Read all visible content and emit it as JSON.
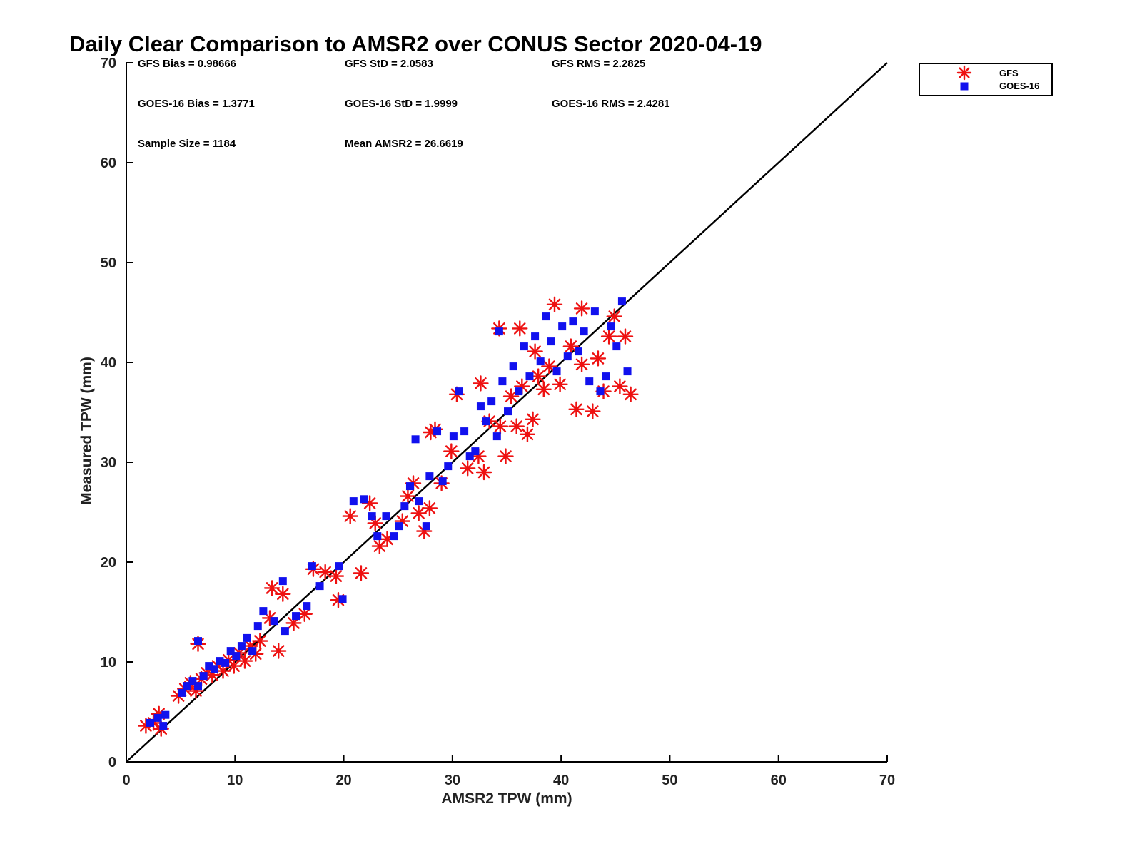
{
  "chart_data": {
    "type": "scatter",
    "title": "Daily Clear Comparison to AMSR2 over CONUS Sector 2020-04-19",
    "xlabel": "AMSR2 TPW (mm)",
    "ylabel": "Measured TPW (mm)",
    "xlim": [
      0,
      70
    ],
    "ylim": [
      0,
      70
    ],
    "xticks": [
      "0",
      "10",
      "20",
      "30",
      "40",
      "50",
      "60",
      "70"
    ],
    "yticks": [
      "0",
      "10",
      "20",
      "30",
      "40",
      "50",
      "60",
      "70"
    ],
    "reference_line": {
      "from": [
        0,
        0
      ],
      "to": [
        70,
        70
      ],
      "color": "#000000"
    },
    "grid": false,
    "legend_position": "top-right-outside",
    "stats": [
      {
        "id": "gfs-bias",
        "text": "GFS Bias = 0.98666"
      },
      {
        "id": "gfs-std",
        "text": "GFS StD = 2.0583"
      },
      {
        "id": "gfs-rms",
        "text": "GFS RMS = 2.2825"
      },
      {
        "id": "goes-bias",
        "text": "GOES-16 Bias = 1.3771"
      },
      {
        "id": "goes-std",
        "text": "GOES-16 StD = 1.9999"
      },
      {
        "id": "goes-rms",
        "text": "GOES-16 RMS = 2.4281"
      },
      {
        "id": "sample-size",
        "text": "Sample Size = 1184"
      },
      {
        "id": "mean-amsr2",
        "text": "Mean AMSR2 = 26.6619"
      }
    ],
    "series": [
      {
        "name": "GFS",
        "marker": "asterisk",
        "color": "#ee1111",
        "points": [
          [
            1.8,
            3.6
          ],
          [
            2.5,
            3.9
          ],
          [
            3.2,
            3.3
          ],
          [
            3.0,
            4.8
          ],
          [
            4.8,
            6.6
          ],
          [
            5.4,
            7.3
          ],
          [
            5.9,
            7.9
          ],
          [
            6.4,
            7.1
          ],
          [
            6.9,
            8.3
          ],
          [
            7.4,
            8.9
          ],
          [
            7.9,
            8.7
          ],
          [
            8.4,
            9.6
          ],
          [
            8.9,
            9.1
          ],
          [
            9.4,
            10.2
          ],
          [
            9.9,
            9.6
          ],
          [
            10.4,
            10.9
          ],
          [
            10.9,
            10.1
          ],
          [
            11.4,
            11.6
          ],
          [
            11.9,
            10.8
          ],
          [
            12.3,
            12.1
          ],
          [
            6.6,
            11.8
          ],
          [
            13.4,
            17.4
          ],
          [
            14.4,
            16.8
          ],
          [
            15.4,
            13.9
          ],
          [
            16.4,
            14.8
          ],
          [
            14.0,
            11.1
          ],
          [
            13.2,
            14.4
          ],
          [
            17.2,
            19.3
          ],
          [
            18.3,
            19.0
          ],
          [
            19.3,
            18.6
          ],
          [
            19.5,
            16.2
          ],
          [
            20.6,
            24.6
          ],
          [
            21.6,
            18.9
          ],
          [
            22.4,
            25.9
          ],
          [
            22.9,
            23.9
          ],
          [
            23.3,
            21.6
          ],
          [
            24.0,
            22.3
          ],
          [
            25.4,
            24.1
          ],
          [
            25.9,
            26.6
          ],
          [
            26.4,
            27.9
          ],
          [
            26.9,
            24.9
          ],
          [
            27.4,
            23.1
          ],
          [
            27.9,
            25.4
          ],
          [
            28.4,
            33.3
          ],
          [
            28.0,
            33.0
          ],
          [
            29.0,
            27.9
          ],
          [
            29.9,
            31.1
          ],
          [
            30.4,
            36.8
          ],
          [
            31.4,
            29.4
          ],
          [
            32.4,
            30.6
          ],
          [
            32.9,
            29.0
          ],
          [
            33.4,
            34.1
          ],
          [
            34.4,
            33.6
          ],
          [
            34.9,
            30.6
          ],
          [
            35.4,
            36.6
          ],
          [
            35.9,
            33.6
          ],
          [
            36.4,
            37.6
          ],
          [
            36.9,
            32.8
          ],
          [
            37.4,
            34.3
          ],
          [
            37.9,
            38.6
          ],
          [
            38.4,
            37.3
          ],
          [
            38.9,
            39.6
          ],
          [
            39.4,
            45.8
          ],
          [
            39.9,
            37.8
          ],
          [
            40.9,
            41.6
          ],
          [
            41.4,
            35.3
          ],
          [
            41.9,
            39.8
          ],
          [
            42.9,
            35.1
          ],
          [
            43.4,
            40.4
          ],
          [
            43.9,
            37.1
          ],
          [
            44.4,
            42.6
          ],
          [
            44.9,
            44.6
          ],
          [
            45.4,
            37.6
          ],
          [
            45.9,
            42.6
          ],
          [
            46.4,
            36.8
          ],
          [
            34.3,
            43.4
          ],
          [
            36.2,
            43.4
          ],
          [
            41.9,
            45.4
          ],
          [
            32.6,
            37.9
          ],
          [
            37.6,
            41.1
          ]
        ]
      },
      {
        "name": "GOES-16",
        "marker": "square",
        "color": "#1111ee",
        "points": [
          [
            2.2,
            3.9
          ],
          [
            2.9,
            4.4
          ],
          [
            3.4,
            3.6
          ],
          [
            3.6,
            4.7
          ],
          [
            5.1,
            6.9
          ],
          [
            5.6,
            7.6
          ],
          [
            6.1,
            8.1
          ],
          [
            6.6,
            7.6
          ],
          [
            7.1,
            8.6
          ],
          [
            7.6,
            9.6
          ],
          [
            8.1,
            9.3
          ],
          [
            8.6,
            10.1
          ],
          [
            9.1,
            9.9
          ],
          [
            9.6,
            11.1
          ],
          [
            10.1,
            10.6
          ],
          [
            10.6,
            11.6
          ],
          [
            11.1,
            12.4
          ],
          [
            11.6,
            11.1
          ],
          [
            12.1,
            13.6
          ],
          [
            12.6,
            15.1
          ],
          [
            6.6,
            12.1
          ],
          [
            13.6,
            14.1
          ],
          [
            14.4,
            18.1
          ],
          [
            14.6,
            13.1
          ],
          [
            15.6,
            14.6
          ],
          [
            16.6,
            15.6
          ],
          [
            17.1,
            19.6
          ],
          [
            17.8,
            17.6
          ],
          [
            19.6,
            19.6
          ],
          [
            19.9,
            16.3
          ],
          [
            20.9,
            26.1
          ],
          [
            21.9,
            26.3
          ],
          [
            22.6,
            24.6
          ],
          [
            23.1,
            22.6
          ],
          [
            23.9,
            24.6
          ],
          [
            24.6,
            22.6
          ],
          [
            25.1,
            23.6
          ],
          [
            25.6,
            25.6
          ],
          [
            26.1,
            27.6
          ],
          [
            26.6,
            32.3
          ],
          [
            26.9,
            26.1
          ],
          [
            27.6,
            23.6
          ],
          [
            27.9,
            28.6
          ],
          [
            28.6,
            33.1
          ],
          [
            29.1,
            28.1
          ],
          [
            29.6,
            29.6
          ],
          [
            30.1,
            32.6
          ],
          [
            30.6,
            37.1
          ],
          [
            31.1,
            33.1
          ],
          [
            31.6,
            30.6
          ],
          [
            32.1,
            31.1
          ],
          [
            32.6,
            35.6
          ],
          [
            33.1,
            34.1
          ],
          [
            33.6,
            36.1
          ],
          [
            34.1,
            32.6
          ],
          [
            34.6,
            38.1
          ],
          [
            35.1,
            35.1
          ],
          [
            35.6,
            39.6
          ],
          [
            36.1,
            37.1
          ],
          [
            36.6,
            41.6
          ],
          [
            37.1,
            38.6
          ],
          [
            37.6,
            42.6
          ],
          [
            38.1,
            40.1
          ],
          [
            38.6,
            44.6
          ],
          [
            39.1,
            42.1
          ],
          [
            39.6,
            39.1
          ],
          [
            40.1,
            43.6
          ],
          [
            40.6,
            40.6
          ],
          [
            41.1,
            44.1
          ],
          [
            41.6,
            41.1
          ],
          [
            42.1,
            43.1
          ],
          [
            42.6,
            38.1
          ],
          [
            43.1,
            45.1
          ],
          [
            43.6,
            37.1
          ],
          [
            44.1,
            38.6
          ],
          [
            44.6,
            43.6
          ],
          [
            45.1,
            41.6
          ],
          [
            45.6,
            46.1
          ],
          [
            46.1,
            39.1
          ],
          [
            34.3,
            43.1
          ]
        ]
      }
    ]
  }
}
